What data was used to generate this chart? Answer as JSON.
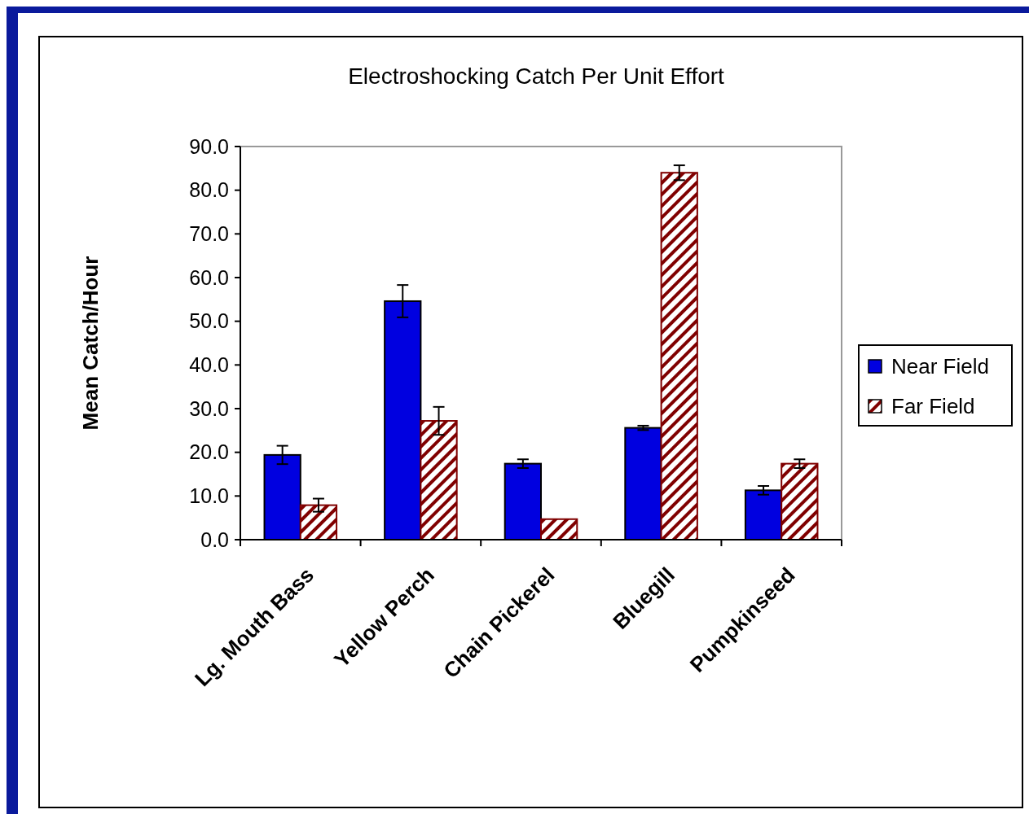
{
  "chart_data": {
    "type": "bar",
    "title": "Electroshocking Catch Per Unit Effort",
    "ylabel": "Mean Catch/Hour",
    "categories": [
      "Lg. Mouth Bass",
      "Yellow Perch",
      "Chain Pickerel",
      "Bluegill",
      "Pumpkinseed"
    ],
    "series": [
      {
        "name": "Near Field",
        "color": "#0000e0",
        "values": [
          19.4,
          54.6,
          17.4,
          25.6,
          11.3
        ],
        "errors": [
          2.1,
          3.7,
          1.0,
          0.5,
          1.0
        ]
      },
      {
        "name": "Far Field",
        "color": "#800000",
        "values": [
          7.9,
          27.2,
          4.7,
          84.0,
          17.4
        ],
        "errors": [
          1.5,
          3.2,
          null,
          1.7,
          1.0
        ]
      }
    ],
    "ylim": [
      0,
      90
    ],
    "yticks": [
      {
        "value": 0,
        "label": "0.0"
      },
      {
        "value": 10,
        "label": "10.0"
      },
      {
        "value": 20,
        "label": "20.0"
      },
      {
        "value": 30,
        "label": "30.0"
      },
      {
        "value": 40,
        "label": "40.0"
      },
      {
        "value": 50,
        "label": "50.0"
      },
      {
        "value": 60,
        "label": "60.0"
      },
      {
        "value": 70,
        "label": "70.0"
      },
      {
        "value": 80,
        "label": "80.0"
      },
      {
        "value": 90,
        "label": "90.0"
      }
    ],
    "grid": false,
    "legend": "right"
  }
}
